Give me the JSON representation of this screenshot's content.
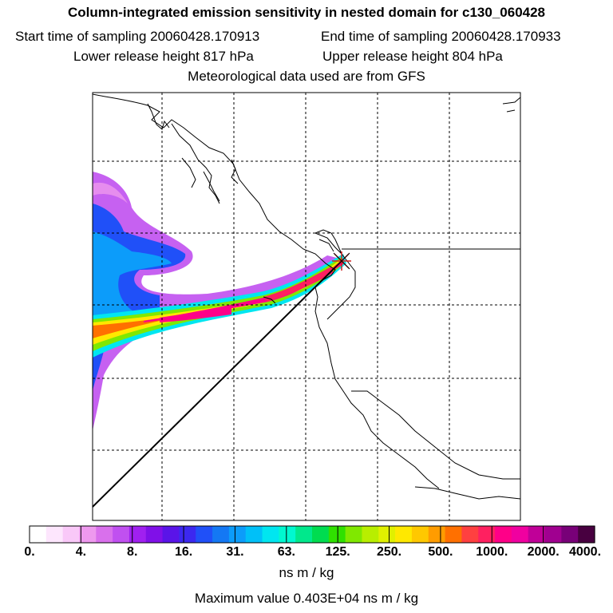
{
  "header": {
    "title": "Column-integrated emission sensitivity in nested domain for c130_060428",
    "start_time": "Start time of sampling 20060428.170913",
    "end_time": "End time of sampling 20060428.170933",
    "lower_release": "Lower release height  817 hPa",
    "upper_release": "Upper release height  804 hPa",
    "met_data": "Meteorological data used are from GFS"
  },
  "legend": {
    "tick_labels": [
      "0.",
      "4.",
      "8.",
      "16.",
      "31.",
      "63.",
      "125.",
      "250.",
      "500.",
      "1000.",
      "2000.",
      "4000."
    ],
    "colors": [
      "#ffffff",
      "#fde6fd",
      "#f9c8f8",
      "#ee99ee",
      "#d970ec",
      "#c050f0",
      "#a020f0",
      "#8010e8",
      "#5a14e8",
      "#3c28f0",
      "#2050f8",
      "#1478f4",
      "#0c9cfa",
      "#00c0f8",
      "#00e6f0",
      "#00f8d0",
      "#00e88c",
      "#00dc50",
      "#30e000",
      "#80e800",
      "#b8ee00",
      "#e0f000",
      "#ffe800",
      "#ffc800",
      "#ff9c00",
      "#ff7000",
      "#ff4040",
      "#ff2060",
      "#ff0088",
      "#f000a0",
      "#c00098",
      "#a00090",
      "#780078",
      "#480040"
    ],
    "units": "ns m / kg",
    "max_value": "Maximum value  0.403E+04 ns m / kg"
  },
  "map": {
    "release_point_icon": "star-marker-icon",
    "gridlines": "dashed"
  }
}
